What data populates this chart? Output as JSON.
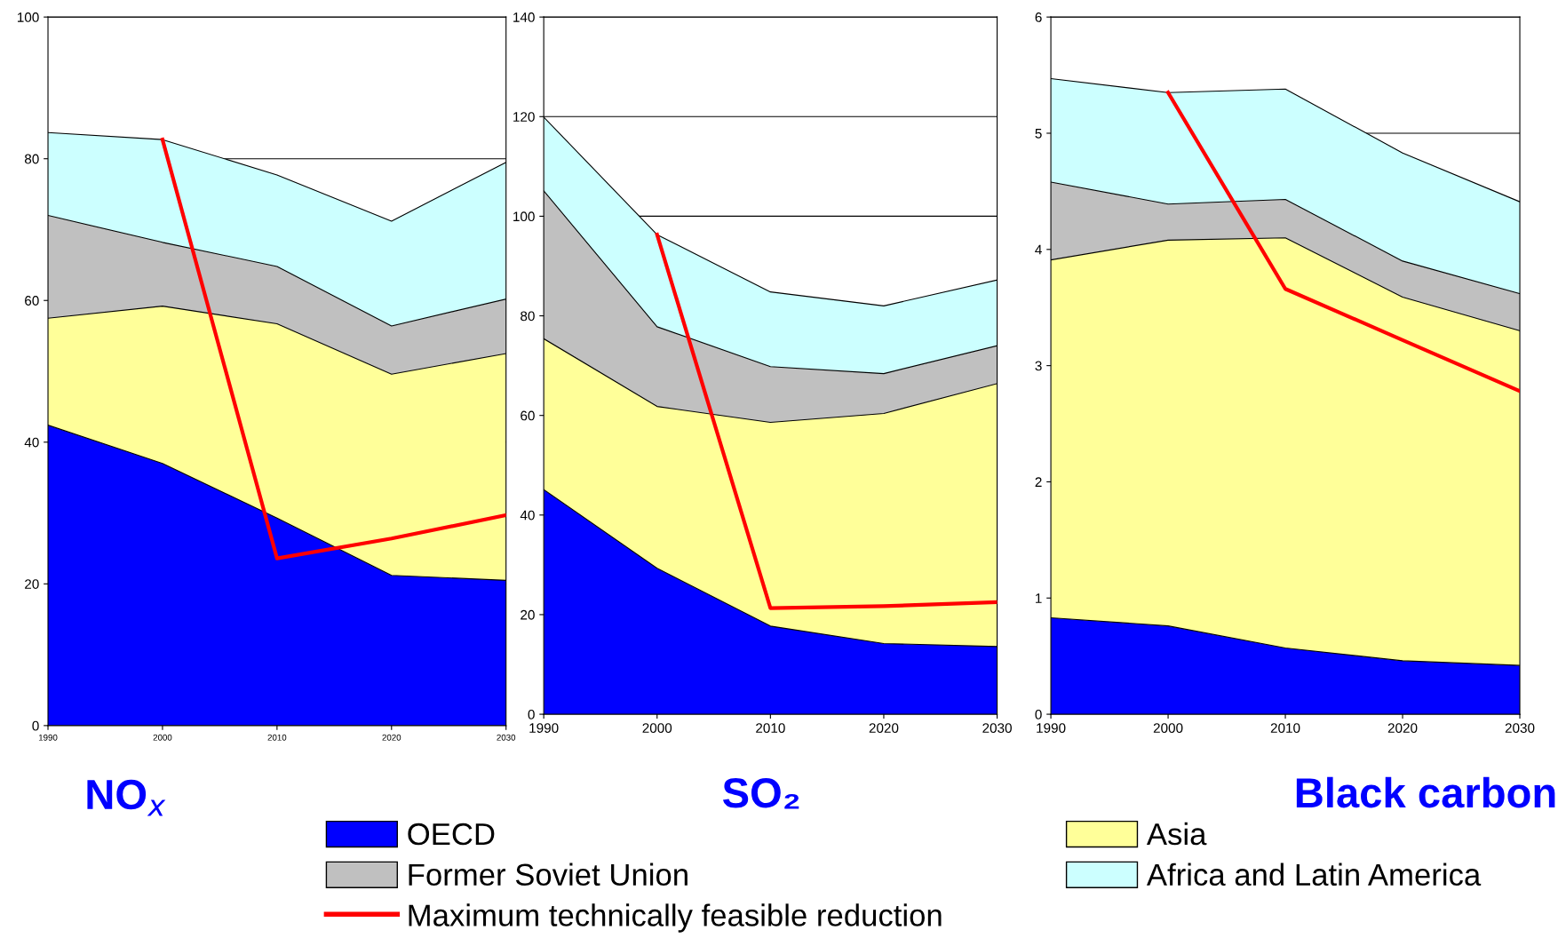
{
  "chart_data": [
    {
      "type": "area",
      "title": "NO$_{x}$",
      "stacked": true,
      "x": [
        1990,
        2000,
        2010,
        2020,
        2030
      ],
      "xlim": [
        1990,
        2030
      ],
      "xticks": [
        1990,
        2000,
        2010,
        2020,
        2030
      ],
      "ylim": [
        0,
        100
      ],
      "yticks": [
        0,
        20,
        40,
        60,
        80,
        100
      ],
      "grid": "y",
      "legend": "bottom",
      "series": [
        {
          "name": "OECD",
          "color": "#0000ff",
          "values": [
            42.4,
            37.0,
            29.3,
            21.2,
            20.5
          ]
        },
        {
          "name": "Asia",
          "color": "#ffff99",
          "values": [
            15.1,
            22.2,
            27.4,
            28.4,
            32.0
          ]
        },
        {
          "name": "Former Soviet Union",
          "color": "#c0c0c0",
          "values": [
            14.5,
            9.0,
            8.1,
            6.8,
            7.7
          ]
        },
        {
          "name": "Africa and Latin America",
          "color": "#ccffff",
          "values": [
            11.7,
            14.5,
            12.9,
            14.8,
            19.3
          ]
        },
        {
          "name": "Maximum technically feasible reduction",
          "type": "line",
          "color": "#ff0000",
          "x": [
            2000,
            2010,
            2020,
            2030
          ],
          "values": [
            82.7,
            23.6,
            26.4,
            29.7
          ]
        }
      ]
    },
    {
      "type": "area",
      "title": "SO₂",
      "stacked": true,
      "x": [
        1990,
        2000,
        2010,
        2020,
        2030
      ],
      "xlim": [
        1990,
        2030
      ],
      "xticks": [
        1990,
        2000,
        2010,
        2020,
        2030
      ],
      "ylim": [
        0,
        140
      ],
      "yticks": [
        0,
        20,
        40,
        60,
        80,
        100,
        120,
        140
      ],
      "grid": "y",
      "series": [
        {
          "color": "#0000ff",
          "values": [
            45.1,
            29.3,
            17.7,
            14.2,
            13.6
          ]
        },
        {
          "color": "#ffff99",
          "values": [
            30.3,
            32.5,
            40.9,
            46.2,
            52.8
          ]
        },
        {
          "color": "#c0c0c0",
          "values": [
            29.7,
            16.0,
            11.2,
            8.0,
            7.6
          ]
        },
        {
          "color": "#ccffff",
          "values": [
            14.8,
            18.5,
            15.0,
            13.6,
            13.2
          ]
        },
        {
          "type": "line",
          "color": "#ff0000",
          "x": [
            2000,
            2010,
            2020,
            2030
          ],
          "values": [
            96.3,
            21.3,
            21.7,
            22.5
          ]
        }
      ]
    },
    {
      "type": "area",
      "title": "Black carbon",
      "stacked": true,
      "x": [
        1990,
        2000,
        2010,
        2020,
        2030
      ],
      "xlim": [
        1990,
        2030
      ],
      "xticks": [
        1990,
        2000,
        2010,
        2020,
        2030
      ],
      "ylim": [
        0,
        6
      ],
      "yticks": [
        0,
        1,
        2,
        3,
        4,
        5,
        6
      ],
      "grid": "y",
      "series": [
        {
          "color": "#0000ff",
          "values": [
            0.83,
            0.76,
            0.57,
            0.46,
            0.42
          ]
        },
        {
          "color": "#ffff99",
          "values": [
            3.08,
            3.32,
            3.53,
            3.13,
            2.88
          ]
        },
        {
          "color": "#c0c0c0",
          "values": [
            0.67,
            0.31,
            0.33,
            0.31,
            0.32
          ]
        },
        {
          "color": "#ccffff",
          "values": [
            0.89,
            0.96,
            0.95,
            0.93,
            0.79
          ]
        },
        {
          "type": "line",
          "color": "#ff0000",
          "x": [
            2000,
            2010,
            2020,
            2030
          ],
          "values": [
            5.35,
            3.66,
            3.22,
            2.78
          ]
        }
      ]
    }
  ]
}
